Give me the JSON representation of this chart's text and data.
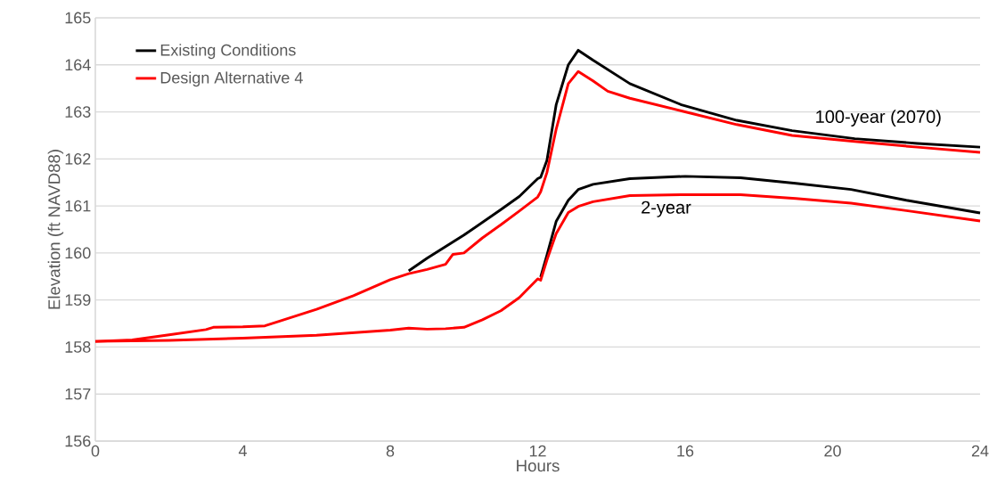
{
  "chart_data": {
    "type": "line",
    "xlabel": "Hours",
    "ylabel": "Elevation (ft NAVD88)",
    "xlim": [
      0,
      24
    ],
    "xticks": [
      0,
      4,
      8,
      12,
      16,
      20,
      24
    ],
    "ylim": [
      156,
      165
    ],
    "yticks": [
      156,
      157,
      158,
      159,
      160,
      161,
      162,
      163,
      164,
      165
    ],
    "grid": "y",
    "legend": "top left",
    "line_style": "solid",
    "marker": "none",
    "annotations": [
      "100-year (2070)",
      "2-year"
    ],
    "series": [
      {
        "name": "Existing Conditions",
        "color": "#000000",
        "x": [
          8.5,
          9,
          10,
          11,
          11.5,
          12,
          12.08,
          12.25,
          12.5,
          12.83,
          13.1,
          13.5,
          14.5,
          15.9,
          17.4,
          18.9,
          20.6,
          22.3,
          24
        ],
        "values": [
          159.62,
          159.89,
          160.38,
          160.92,
          161.2,
          161.58,
          161.61,
          161.97,
          163.15,
          164.0,
          164.31,
          164.1,
          163.6,
          163.15,
          162.82,
          162.6,
          162.43,
          162.33,
          162.25
        ]
      },
      {
        "name": "Design Alternative 4",
        "color": "#ff0000",
        "x": [
          0,
          1,
          2,
          3,
          3.2,
          4,
          4.6,
          5,
          6,
          7,
          8,
          8.5,
          9,
          9.5,
          9.7,
          10,
          10.5,
          11,
          11.5,
          12,
          12.08,
          12.25,
          12.5,
          12.83,
          13.1,
          13.5,
          13.9,
          14.5,
          15.9,
          17.4,
          18.9,
          20.6,
          22.3,
          24
        ],
        "values": [
          158.12,
          158.15,
          158.26,
          158.37,
          158.42,
          158.43,
          158.45,
          158.55,
          158.8,
          159.09,
          159.43,
          159.56,
          159.65,
          159.76,
          159.97,
          160.0,
          160.32,
          160.6,
          160.89,
          161.19,
          161.3,
          161.71,
          162.63,
          163.6,
          163.86,
          163.66,
          163.44,
          163.29,
          163.02,
          162.73,
          162.5,
          162.37,
          162.25,
          162.14
        ]
      },
      {
        "color": "#000000",
        "x": [
          12.08,
          12.25,
          12.5,
          12.83,
          13.1,
          13.5,
          14.5,
          16,
          17.5,
          19,
          20.5,
          22,
          24
        ],
        "values": [
          159.49,
          159.95,
          160.67,
          161.12,
          161.35,
          161.46,
          161.58,
          161.63,
          161.6,
          161.48,
          161.35,
          161.12,
          160.85
        ]
      },
      {
        "color": "#ff0000",
        "x": [
          0,
          2,
          4,
          6,
          8,
          8.5,
          9,
          9.5,
          10,
          10.5,
          11,
          11.5,
          12,
          12.08,
          12.25,
          12.5,
          12.83,
          13.1,
          13.5,
          14.5,
          16,
          17.5,
          19,
          20.5,
          22,
          24
        ],
        "values": [
          158.12,
          158.14,
          158.19,
          158.25,
          158.36,
          158.4,
          158.38,
          158.39,
          158.42,
          158.58,
          158.77,
          159.05,
          159.45,
          159.42,
          159.85,
          160.41,
          160.86,
          160.99,
          161.09,
          161.22,
          161.24,
          161.24,
          161.16,
          161.06,
          160.9,
          160.68
        ]
      }
    ]
  }
}
